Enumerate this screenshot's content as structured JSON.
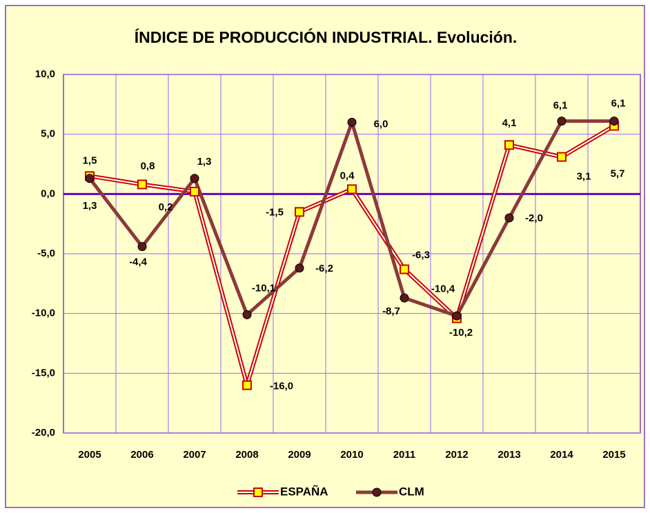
{
  "chart_data": {
    "type": "line",
    "title": "ÍNDICE DE PRODUCCIÓN INDUSTRIAL. Evolución.",
    "categories": [
      "2005",
      "2006",
      "2007",
      "2008",
      "2009",
      "2010",
      "2011",
      "2012",
      "2013",
      "2014",
      "2015"
    ],
    "series": [
      {
        "name": "ESPAÑA",
        "color": "#cc0000",
        "marker_color": "#ffff00",
        "values": [
          1.5,
          0.8,
          0.2,
          -16.0,
          -1.5,
          0.4,
          -6.3,
          -10.4,
          4.1,
          3.1,
          5.7
        ],
        "value_labels": [
          "1,5",
          "0,8",
          "0,2",
          "-16,0",
          "-1,5",
          "0,4",
          "-6,3",
          "-10,4",
          "4,1",
          "3,1",
          "5,7"
        ]
      },
      {
        "name": "CLM",
        "color": "#8b3a3a",
        "marker_color": "#5a1a1a",
        "values": [
          1.3,
          -4.4,
          1.3,
          -10.1,
          -6.2,
          6.0,
          -8.7,
          -10.2,
          -2.0,
          6.1,
          6.1
        ],
        "value_labels": [
          "1,3",
          "-4,4",
          "1,3",
          "-10,1",
          "-6,2",
          "6,0",
          "-8,7",
          "-10,2",
          "-2,0",
          "6,1",
          "6,1"
        ]
      }
    ],
    "ylim": [
      -20,
      10
    ],
    "yticks": [
      {
        "value": -20,
        "label": "-20,0"
      },
      {
        "value": -15,
        "label": "-15,0"
      },
      {
        "value": -10,
        "label": "-10,0"
      },
      {
        "value": -5,
        "label": "-5,0"
      },
      {
        "value": 0,
        "label": "0,0"
      },
      {
        "value": 5,
        "label": "5,0"
      },
      {
        "value": 10,
        "label": "10,0"
      }
    ],
    "grid": true,
    "legend": "bottom"
  }
}
